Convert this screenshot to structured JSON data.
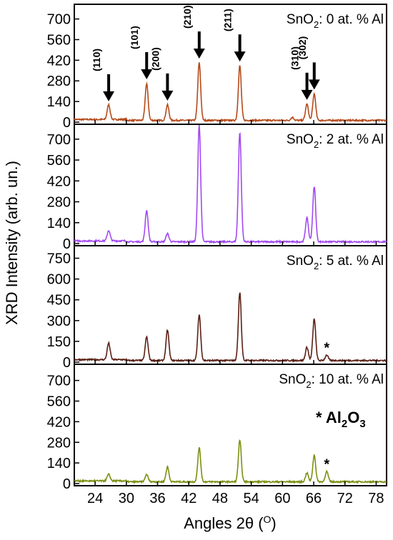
{
  "chart_data": {
    "type": "line",
    "xlabel": "Angles 2θ (°)",
    "ylabel": "XRD Intensity (arb. un.)",
    "xlim": [
      20,
      80
    ],
    "x_ticks": [
      "24",
      "30",
      "36",
      "42",
      "48",
      "54",
      "60",
      "66",
      "72",
      "78"
    ],
    "annotation_text": "* Al2O3",
    "panels": [
      {
        "label": "SnO2: 0 at. % Al",
        "color": "#b54a1a",
        "ylim": [
          0,
          790
        ],
        "y_ticks": [
          "0",
          "140",
          "280",
          "420",
          "560",
          "700"
        ],
        "peaks": [
          [
            26.6,
            100
          ],
          [
            33.9,
            250
          ],
          [
            37.9,
            105
          ],
          [
            44.0,
            390
          ],
          [
            51.8,
            370
          ],
          [
            61.9,
            20
          ],
          [
            64.7,
            110
          ],
          [
            66.1,
            180
          ]
        ],
        "hkl": [
          {
            "x": 26.6,
            "label": "(110)"
          },
          {
            "x": 33.9,
            "label": "(101)"
          },
          {
            "x": 37.9,
            "label": "(200)"
          },
          {
            "x": 44.0,
            "label": "(210)"
          },
          {
            "x": 51.8,
            "label": "(211)"
          },
          {
            "x": 64.7,
            "label": "(310)"
          },
          {
            "x": 66.1,
            "label": "(302)"
          }
        ]
      },
      {
        "label": "SnO2: 2 at. % Al",
        "color": "#a24af0",
        "ylim": [
          0,
          790
        ],
        "y_ticks": [
          "0",
          "140",
          "280",
          "420",
          "560",
          "700"
        ],
        "peaks": [
          [
            26.6,
            70
          ],
          [
            33.9,
            210
          ],
          [
            37.9,
            55
          ],
          [
            44.0,
            780
          ],
          [
            51.8,
            730
          ],
          [
            64.7,
            160
          ],
          [
            66.1,
            370
          ]
        ]
      },
      {
        "label": "SnO2: 5 at. % Al",
        "color": "#5a1f14",
        "ylim": [
          0,
          830
        ],
        "y_ticks": [
          "0",
          "150",
          "300",
          "450",
          "600",
          "750"
        ],
        "peaks": [
          [
            26.6,
            120
          ],
          [
            33.9,
            170
          ],
          [
            37.9,
            220
          ],
          [
            44.0,
            330
          ],
          [
            51.8,
            490
          ],
          [
            64.7,
            95
          ],
          [
            66.1,
            300
          ],
          [
            68.5,
            40
          ]
        ],
        "marker": {
          "x": 68.5,
          "label": "*"
        }
      },
      {
        "label": "SnO2: 10 at. % Al",
        "color": "#7d8f12",
        "ylim": [
          0,
          800
        ],
        "y_ticks": [
          "0",
          "140",
          "280",
          "420",
          "560",
          "700"
        ],
        "peaks": [
          [
            26.6,
            45
          ],
          [
            33.9,
            50
          ],
          [
            37.9,
            100
          ],
          [
            44.0,
            230
          ],
          [
            51.8,
            280
          ],
          [
            64.7,
            60
          ],
          [
            66.1,
            180
          ],
          [
            68.5,
            70
          ]
        ],
        "marker": {
          "x": 68.5,
          "label": "*"
        }
      }
    ]
  }
}
